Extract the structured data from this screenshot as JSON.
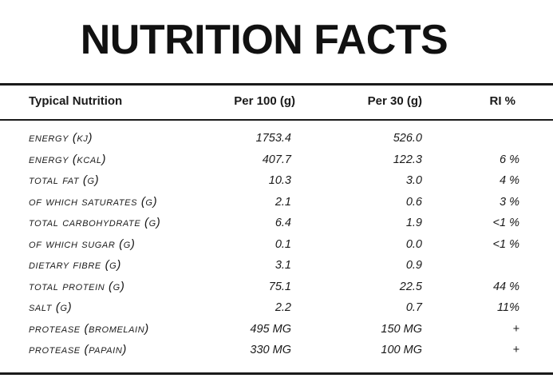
{
  "title": "NUTRITION FACTS",
  "headers": {
    "name": "Typical Nutrition",
    "per100": "Per 100 (g)",
    "per30": "Per 30 (g)",
    "ri": "RI %"
  },
  "rows": [
    {
      "name": "ENERGY (KJ)",
      "per100": "1753.4",
      "per30": "526.0",
      "ri": ""
    },
    {
      "name": "ENERGY (KCAL)",
      "per100": "407.7",
      "per30": "122.3",
      "ri": "6 %"
    },
    {
      "name": "TOTAL FAT (G)",
      "per100": "10.3",
      "per30": "3.0",
      "ri": "4 %"
    },
    {
      "name": "OF WHICH SATURATES (G)",
      "per100": "2.1",
      "per30": "0.6",
      "ri": "3 %"
    },
    {
      "name": "TOTAL CARBOHYDRATE (G)",
      "per100": "6.4",
      "per30": "1.9",
      "ri": "<1 %"
    },
    {
      "name": "OF WHICH SUGAR (G)",
      "per100": "0.1",
      "per30": "0.0",
      "ri": "<1 %"
    },
    {
      "name": "DIETARY FIBRE (G)",
      "per100": "3.1",
      "per30": "0.9",
      "ri": ""
    },
    {
      "name": "TOTAL PROTEIN (G)",
      "per100": "75.1",
      "per30": "22.5",
      "ri": "44 %"
    },
    {
      "name": "SALT (G)",
      "per100": "2.2",
      "per30": "0.7",
      "ri": "11%"
    },
    {
      "name": "PROTEASE (BROMELAIN)",
      "per100": "495 MG",
      "per30": "150 MG",
      "ri": "+"
    },
    {
      "name": "PROTEASE (PAPAIN)",
      "per100": "330 MG",
      "per30": "100 MG",
      "ri": "+"
    }
  ]
}
